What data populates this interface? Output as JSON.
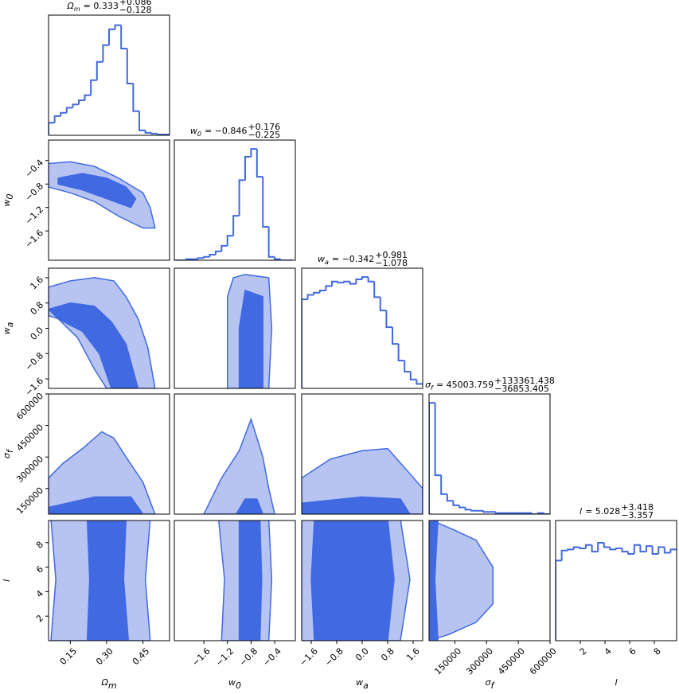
{
  "chart_data": {
    "type": "corner",
    "colors": {
      "outer": "#b7c4f2",
      "inner": "#4169e1",
      "line": "#4169e1"
    },
    "params": [
      {
        "symbol": "Ω",
        "sub": "m",
        "title": {
          "value": "= 0.333",
          "upper": "+0.086",
          "lower": "−0.128"
        },
        "range": [
          0.06,
          0.56
        ],
        "ticks": [
          0.15,
          {
            "value": 0.3,
            "label": "0.30"
          },
          0.45
        ],
        "hist": {
          "ylim": [
            0,
            144
          ],
          "bins": [
            0.06,
            0.085,
            0.11,
            0.135,
            0.16,
            0.185,
            0.21,
            0.235,
            0.26,
            0.285,
            0.31,
            0.335,
            0.36,
            0.385,
            0.41,
            0.435,
            0.46,
            0.485,
            0.51,
            0.535,
            0.56
          ],
          "counts": [
            15,
            23,
            27,
            33,
            37,
            42,
            48,
            66,
            88,
            108,
            127,
            132,
            104,
            62,
            29,
            6,
            3,
            2,
            1,
            1
          ]
        }
      },
      {
        "symbol": "w",
        "sub": "0",
        "title": {
          "value": "= −0.846",
          "upper": "+0.176",
          "lower": "−0.225"
        },
        "range": [
          -2.1,
          -0.05
        ],
        "ticks": [
          {
            "value": -1.6,
            "label": "−1.6"
          },
          {
            "value": -1.2,
            "label": "−1.2"
          },
          {
            "value": -0.8,
            "label": "−0.8"
          },
          {
            "value": -0.4,
            "label": "−0.4"
          }
        ],
        "hist": {
          "ylim": [
            0,
            108
          ],
          "bins": [
            -2.1,
            -2.0,
            -1.9,
            -1.8,
            -1.7,
            -1.6,
            -1.5,
            -1.4,
            -1.3,
            -1.2,
            -1.1,
            -1.0,
            -0.9,
            -0.8,
            -0.7,
            -0.6,
            -0.5,
            -0.4,
            -0.3,
            -0.2,
            -0.1
          ],
          "counts": [
            0,
            0,
            1,
            1,
            2,
            3,
            5,
            8,
            13,
            22,
            40,
            72,
            93,
            100,
            75,
            30,
            3,
            1,
            0,
            0
          ]
        }
      },
      {
        "symbol": "w",
        "sub": "a",
        "title": {
          "value": "= −0.342",
          "upper": "+0.981",
          "lower": "−1.078"
        },
        "range": [
          -1.9,
          1.9
        ],
        "ticks": [
          {
            "value": -1.6,
            "label": "−1.6"
          },
          {
            "value": -0.8,
            "label": "−0.8"
          },
          {
            "value": 0,
            "label": "0.0"
          },
          0.8,
          1.6
        ],
        "hist": {
          "ylim": [
            0,
            108
          ],
          "bins": [
            -1.9,
            -1.71,
            -1.52,
            -1.33,
            -1.14,
            -0.95,
            -0.76,
            -0.57,
            -0.38,
            -0.19,
            0,
            0.19,
            0.38,
            0.57,
            0.76,
            0.95,
            1.14,
            1.33,
            1.52,
            1.71,
            1.9
          ],
          "counts": [
            80,
            84,
            86,
            88,
            92,
            96,
            95,
            96,
            94,
            98,
            100,
            96,
            82,
            70,
            55,
            40,
            25,
            15,
            8,
            4
          ]
        }
      },
      {
        "symbol": "σ",
        "sub": "f",
        "title": {
          "value": "= 45003.759",
          "upper": "+133361.438",
          "lower": "−36853.405"
        },
        "range": [
          28000,
          600000
        ],
        "ticks": [
          150000,
          300000,
          450000,
          600000
        ],
        "hist": {
          "ylim": [
            0,
            108
          ],
          "bins": [
            28000,
            56600,
            85200,
            113800,
            142400,
            171000,
            199600,
            228200,
            256800,
            285400,
            314000,
            342600,
            371200,
            399800,
            428400,
            457000,
            485600,
            514200,
            542800,
            571400,
            600000
          ],
          "counts": [
            100,
            35,
            18,
            12,
            8,
            6,
            4,
            3,
            3,
            2,
            2,
            1,
            1,
            1,
            1,
            1,
            1,
            0,
            1,
            0
          ]
        }
      },
      {
        "symbol": "l",
        "sub": "",
        "title": {
          "value": "= 5.028",
          "upper": "+3.418",
          "lower": "−3.357"
        },
        "range": [
          0,
          9.8
        ],
        "ticks": [
          2,
          4,
          6,
          8
        ],
        "hist": {
          "ylim": [
            0,
            108
          ],
          "bins": [
            0,
            0.49,
            0.98,
            1.47,
            1.96,
            2.45,
            2.94,
            3.43,
            3.92,
            4.41,
            4.9,
            5.39,
            5.88,
            6.37,
            6.86,
            7.35,
            7.84,
            8.33,
            8.82,
            9.31,
            9.8
          ],
          "counts": [
            72,
            81,
            82,
            84,
            83,
            86,
            80,
            88,
            84,
            82,
            83,
            80,
            78,
            86,
            80,
            85,
            78,
            84,
            79,
            82
          ]
        }
      }
    ],
    "contours": [
      [],
      [
        {
          "outer": {
            "x": [
              0.06,
              0.15,
              0.25,
              0.35,
              0.45,
              0.48,
              0.5,
              0.45,
              0.35,
              0.25,
              0.15,
              0.06
            ],
            "y": [
              -0.45,
              -0.42,
              -0.5,
              -0.7,
              -0.95,
              -1.2,
              -1.55,
              -1.55,
              -1.35,
              -1.1,
              -0.95,
              -0.85
            ]
          },
          "inner": {
            "x": [
              0.1,
              0.2,
              0.3,
              0.38,
              0.42,
              0.4,
              0.3,
              0.2,
              0.1
            ],
            "y": [
              -0.7,
              -0.62,
              -0.7,
              -0.85,
              -1.05,
              -1.2,
              -1.05,
              -0.9,
              -0.8
            ]
          }
        }
      ],
      [
        {
          "outer": {
            "x": [
              0.06,
              0.15,
              0.25,
              0.33,
              0.38,
              0.43,
              0.47,
              0.5,
              0.3,
              0.25,
              0.18,
              0.1,
              0.06
            ],
            "y": [
              1.3,
              1.5,
              1.6,
              1.5,
              1.0,
              0.3,
              -0.6,
              -1.9,
              -1.9,
              -1.3,
              -0.3,
              0.3,
              0.4
            ]
          },
          "inner": {
            "x": [
              0.06,
              0.15,
              0.25,
              0.32,
              0.38,
              0.43,
              0.32,
              0.27,
              0.2,
              0.1
            ],
            "y": [
              0.6,
              0.8,
              0.7,
              0.2,
              -0.5,
              -1.9,
              -1.9,
              -0.8,
              -0.1,
              0.3
            ]
          }
        },
        {
          "outer": {
            "x": [
              -1.1,
              -0.9,
              -0.5,
              -0.45,
              -0.5,
              -1.2,
              -1.2,
              -1.2
            ],
            "y": [
              1.6,
              1.7,
              1.6,
              0,
              -1.9,
              -1.9,
              0,
              1.0
            ]
          },
          "inner": {
            "x": [
              -0.9,
              -0.6,
              -0.6,
              -1.0,
              -1.0
            ],
            "y": [
              1.2,
              1.0,
              -1.9,
              -1.9,
              0
            ]
          }
        }
      ],
      [
        {
          "outer": {
            "x": [
              0.06,
              0.12,
              0.2,
              0.28,
              0.33,
              0.38,
              0.45,
              0.5,
              0.06
            ],
            "y": [
              200000,
              270000,
              340000,
              420000,
              390000,
              300000,
              180000,
              28000,
              28000
            ]
          },
          "inner": {
            "x": [
              0.06,
              0.25,
              0.4,
              0.45,
              0.06
            ],
            "y": [
              60000,
              110000,
              110000,
              28000,
              28000
            ]
          }
        },
        {
          "outer": {
            "x": [
              -1.6,
              -1.3,
              -1.0,
              -0.8,
              -0.6,
              -0.5,
              -0.4
            ],
            "y": [
              28000,
              200000,
              330000,
              480000,
              300000,
              150000,
              28000
            ]
          },
          "inner": {
            "x": [
              -1.05,
              -0.9,
              -0.7,
              -0.6
            ],
            "y": [
              28000,
              100000,
              100000,
              28000
            ]
          }
        },
        {
          "outer": {
            "x": [
              -1.9,
              -1.0,
              0,
              0.8,
              1.5,
              1.9,
              1.9,
              -1.9
            ],
            "y": [
              200000,
              290000,
              330000,
              340000,
              220000,
              150000,
              28000,
              28000
            ]
          },
          "inner": {
            "x": [
              -1.9,
              0,
              1.2,
              1.5,
              -1.9
            ],
            "y": [
              80000,
              110000,
              100000,
              28000,
              28000
            ]
          }
        }
      ],
      [
        {
          "outer": {
            "x": [
              0.07,
              0.48,
              0.46,
              0.48,
              0.07,
              0.09
            ],
            "y": [
              9.9,
              9.9,
              5,
              0,
              0,
              5
            ]
          },
          "inner": {
            "x": [
              0.22,
              0.38,
              0.37,
              0.39,
              0.22,
              0.23
            ],
            "y": [
              9.9,
              9.9,
              5,
              0,
              0,
              5
            ]
          }
        },
        {
          "outer": {
            "x": [
              -1.35,
              -0.5,
              -0.45,
              -0.5,
              -1.3,
              -1.25
            ],
            "y": [
              9.9,
              9.9,
              5,
              0,
              0,
              5
            ]
          },
          "inner": {
            "x": [
              -1.0,
              -0.65,
              -0.62,
              -0.65,
              -1.0
            ],
            "y": [
              9.9,
              9.9,
              5,
              0,
              0
            ]
          }
        },
        {
          "outer": {
            "x": [
              -1.9,
              1.2,
              1.5,
              1.2,
              -1.9
            ],
            "y": [
              9.9,
              9.9,
              5,
              0,
              0
            ]
          },
          "inner": {
            "x": [
              -1.5,
              0.8,
              1.0,
              0.8,
              -1.5,
              -1.6
            ],
            "y": [
              9.9,
              9.9,
              5,
              0,
              0,
              5
            ]
          }
        },
        {
          "outer": {
            "x": [
              28000,
              150000,
              250000,
              330000,
              330000,
              250000,
              120000,
              28000
            ],
            "y": [
              9.9,
              9.0,
              8.2,
              6,
              3,
              1.5,
              0.5,
              0
            ]
          },
          "inner": {
            "x": [
              28000,
              70000,
              55000,
              70000,
              28000
            ],
            "y": [
              9.9,
              9.9,
              5,
              0,
              0
            ]
          }
        }
      ]
    ]
  }
}
